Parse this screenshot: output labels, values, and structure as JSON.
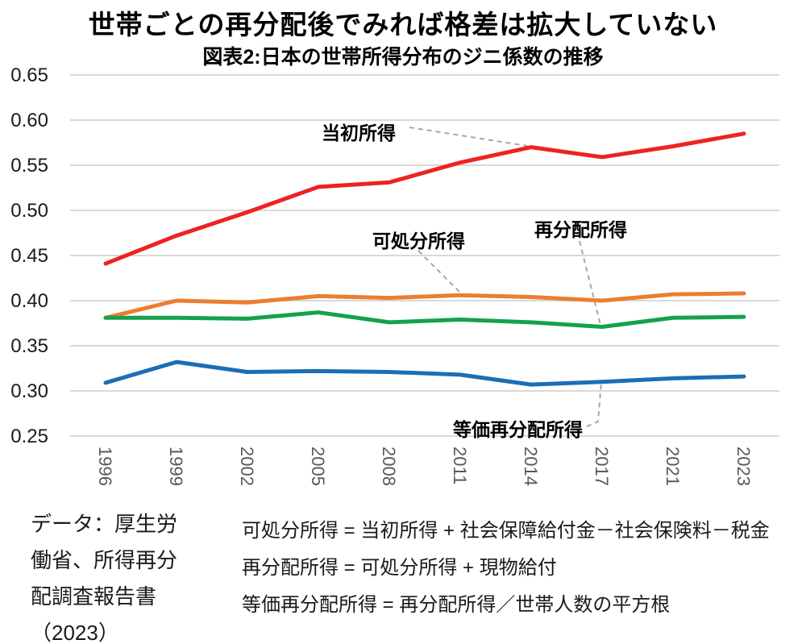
{
  "header": {
    "title": "世帯ごとの再分配後でみれば格差は拡大していない",
    "subtitle": "図表2:日本の世帯所得分布のジニ係数の推移"
  },
  "chart_data": {
    "type": "line",
    "title": "世帯ごとの再分配後でみれば格差は拡大していない",
    "subtitle": "図表2:日本の世帯所得分布のジニ係数の推移",
    "categories": [
      "1996",
      "1999",
      "2002",
      "2005",
      "2008",
      "2011",
      "2014",
      "2017",
      "2021",
      "2023"
    ],
    "series": [
      {
        "name": "当初所得",
        "color": "#EE2222",
        "values": [
          0.441,
          0.472,
          0.498,
          0.526,
          0.531,
          0.553,
          0.57,
          0.559,
          0.571,
          0.585
        ]
      },
      {
        "name": "可処分所得",
        "color": "#ED7D31",
        "values": [
          0.381,
          0.4,
          0.398,
          0.405,
          0.403,
          0.406,
          0.404,
          0.4,
          0.407,
          0.408
        ]
      },
      {
        "name": "再分配所得",
        "color": "#14A24B",
        "values": [
          0.381,
          0.381,
          0.38,
          0.387,
          0.376,
          0.379,
          0.376,
          0.371,
          0.381,
          0.382
        ]
      },
      {
        "name": "等価再分配所得",
        "color": "#1C6EB5",
        "values": [
          0.309,
          0.332,
          0.321,
          0.322,
          0.321,
          0.318,
          0.307,
          0.31,
          0.314,
          0.316
        ]
      }
    ],
    "xlabel": "",
    "ylabel": "",
    "ylim": [
      0.25,
      0.65
    ],
    "ytick_step": 0.05,
    "ytick_labels": [
      "0.65",
      "0.60",
      "0.55",
      "0.50",
      "0.45",
      "0.40",
      "0.35",
      "0.30",
      "0.25"
    ],
    "grid": true,
    "legend_position": "inline-annotations"
  },
  "annotations": {
    "initial_income": {
      "label": "当初所得"
    },
    "disposable_income": {
      "label": "可処分所得"
    },
    "redistributed_income": {
      "label": "再分配所得"
    },
    "equivalized_redistributed_income": {
      "label": "等価再分配所得"
    }
  },
  "footer": {
    "source_note": {
      "lines": [
        "データ：厚生労",
        "働省、所得再分",
        "配調査報告書",
        "（2023）"
      ]
    },
    "definitions": {
      "lines": [
        "可処分所得 = 当初所得 + 社会保障給付金－社会保険料－税金",
        "再分配所得 = 可処分所得 + 現物給付",
        "等価再分配所得 = 再分配所得／世帯人数の平方根"
      ]
    }
  },
  "colors": {
    "gridline": "#D9D9D9",
    "leader_dash": "#A6A6A6",
    "x_tick_label": "#595959",
    "y_tick_label": "#1A1A1A",
    "background": "#FFFFFF"
  }
}
